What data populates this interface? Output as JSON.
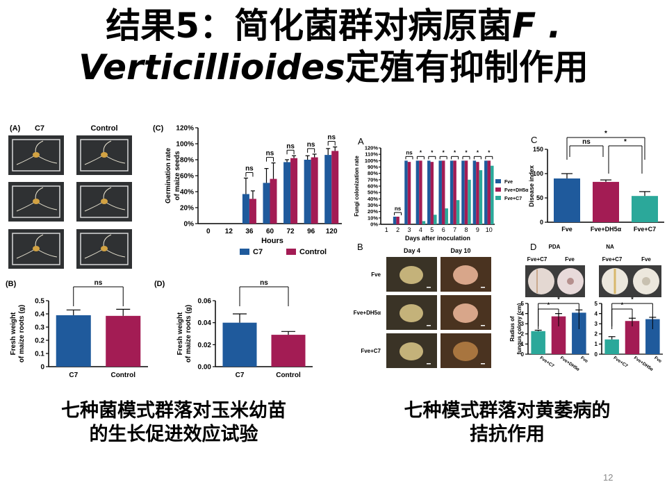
{
  "title": {
    "line1_prefix": "结果5：简化菌群对病原菌",
    "line1_italic": "F .",
    "line2_italic": "Verticillioides",
    "line2_suffix": "定殖有抑制作用"
  },
  "captions": {
    "left_line1": "七种菌模式群落对玉米幼苗",
    "left_line2": "的生长促进效应试验",
    "right_line1": "七种模式群落对黄萎病的",
    "right_line2": "拮抗作用"
  },
  "page_number": "12",
  "colors": {
    "blue": "#1f5a9c",
    "crimson": "#a31c54",
    "teal": "#2ba89a"
  },
  "photos_left": {
    "panel": "(A)",
    "col1": "C7",
    "col2": "Control"
  },
  "photos_right": {
    "panel": "B",
    "col1": "Day 4",
    "col2": "Day 10",
    "rows": [
      "Fve",
      "Fve+DH5α",
      "Fve+C7"
    ]
  },
  "plates": {
    "panel": "D",
    "col1": "PDA",
    "col2": "NA",
    "labels": [
      "Fve+C7",
      "Fve",
      "Fve+C7",
      "Fve"
    ]
  },
  "chart_data": [
    {
      "id": "C-left",
      "type": "bar",
      "panel": "(C)",
      "x": [
        "0",
        "12",
        "36",
        "60",
        "72",
        "96",
        "120"
      ],
      "xlabel": "Hours",
      "ylabel": "Germination rate of maize seeds",
      "yticks": [
        "0%",
        "20%",
        "40%",
        "60%",
        "80%",
        "100%",
        "120%"
      ],
      "ylim": [
        0,
        120
      ],
      "series": [
        {
          "name": "C7",
          "values": [
            0,
            0,
            37,
            51,
            77,
            80,
            86
          ],
          "errors": [
            0,
            0,
            20,
            18,
            3,
            5,
            8
          ]
        },
        {
          "name": "Control",
          "values": [
            0,
            0,
            31,
            56,
            82,
            83,
            91
          ],
          "errors": [
            0,
            0,
            10,
            20,
            3,
            4,
            5
          ]
        }
      ],
      "annotations": [
        "ns",
        "ns",
        "ns",
        "ns",
        "ns"
      ]
    },
    {
      "id": "B-left",
      "type": "bar",
      "panel": "(B)",
      "categories": [
        "C7",
        "Control"
      ],
      "values": [
        0.39,
        0.385
      ],
      "errors": [
        0.04,
        0.05
      ],
      "ylabel": "Fresh weight of maize roots (g)",
      "yticks": [
        "0",
        "0.1",
        "0.2",
        "0.3",
        "0.4",
        "0.5"
      ],
      "ylim": [
        0,
        0.5
      ],
      "annotation": "ns"
    },
    {
      "id": "D-left",
      "type": "bar",
      "panel": "(D)",
      "categories": [
        "C7",
        "Control"
      ],
      "values": [
        0.04,
        0.029
      ],
      "errors": [
        0.008,
        0.003
      ],
      "ylabel": "Fresh weight of maize roots (g)",
      "yticks": [
        "0.00",
        "0.02",
        "0.04",
        "0.06"
      ],
      "ylim": [
        0,
        0.06
      ],
      "annotation": "ns"
    },
    {
      "id": "A-right",
      "type": "bar",
      "panel": "A",
      "x": [
        "1",
        "2",
        "3",
        "4",
        "5",
        "6",
        "7",
        "8",
        "9",
        "10"
      ],
      "xlabel": "Days after inoculation",
      "ylabel": "Fungi colonization rate",
      "yticks": [
        "0%",
        "10%",
        "20%",
        "30%",
        "40%",
        "50%",
        "60%",
        "70%",
        "80%",
        "90%",
        "100%",
        "110%",
        "120%"
      ],
      "ylim": [
        0,
        120
      ],
      "series": [
        {
          "name": "Fve",
          "values": [
            0,
            12,
            100,
            100,
            100,
            100,
            100,
            100,
            100,
            100
          ]
        },
        {
          "name": "Fve+DH5α",
          "values": [
            0,
            12,
            98,
            100,
            98,
            100,
            100,
            100,
            98,
            100
          ]
        },
        {
          "name": "Fve+C7",
          "values": [
            0,
            0,
            0,
            5,
            15,
            25,
            38,
            70,
            85,
            92
          ]
        }
      ],
      "annotations": [
        "ns",
        "ns",
        "*",
        "*",
        "*",
        "*",
        "*",
        "*",
        "*"
      ]
    },
    {
      "id": "C-right",
      "type": "bar",
      "panel": "C",
      "categories": [
        "Fve",
        "Fve+DH5α",
        "Fve+C7"
      ],
      "values": [
        90,
        83,
        54
      ],
      "errors": [
        10,
        4,
        9
      ],
      "ylabel": "Disease index",
      "yticks": [
        "0",
        "50",
        "100",
        "150"
      ],
      "ylim": [
        0,
        150
      ],
      "annotations": [
        "*",
        "ns",
        "*"
      ]
    },
    {
      "id": "D-right-PDA",
      "type": "bar",
      "categories": [
        "Fve+C7",
        "Fve+DH5α",
        "Fve"
      ],
      "values": [
        2.5,
        4.1,
        4.5
      ],
      "errors": [
        0.1,
        0.3,
        0.3
      ],
      "ylabel": "Radius of fungus colony (cm)",
      "yticks": [
        "0",
        "1",
        "2",
        "3",
        "4",
        "5"
      ],
      "ylim": [
        0,
        5.5
      ],
      "annotations": [
        "*",
        "*"
      ]
    },
    {
      "id": "D-right-NA",
      "type": "bar",
      "categories": [
        "Fve+C7",
        "Fve+DH5α",
        "Fve"
      ],
      "values": [
        1.6,
        3.6,
        3.8
      ],
      "errors": [
        0.3,
        0.3,
        0.2
      ],
      "ylabel": "",
      "yticks": [
        "0",
        "1",
        "2",
        "3",
        "4",
        "5"
      ],
      "ylim": [
        0,
        5.5
      ],
      "annotations": [
        "*",
        "*"
      ]
    }
  ]
}
